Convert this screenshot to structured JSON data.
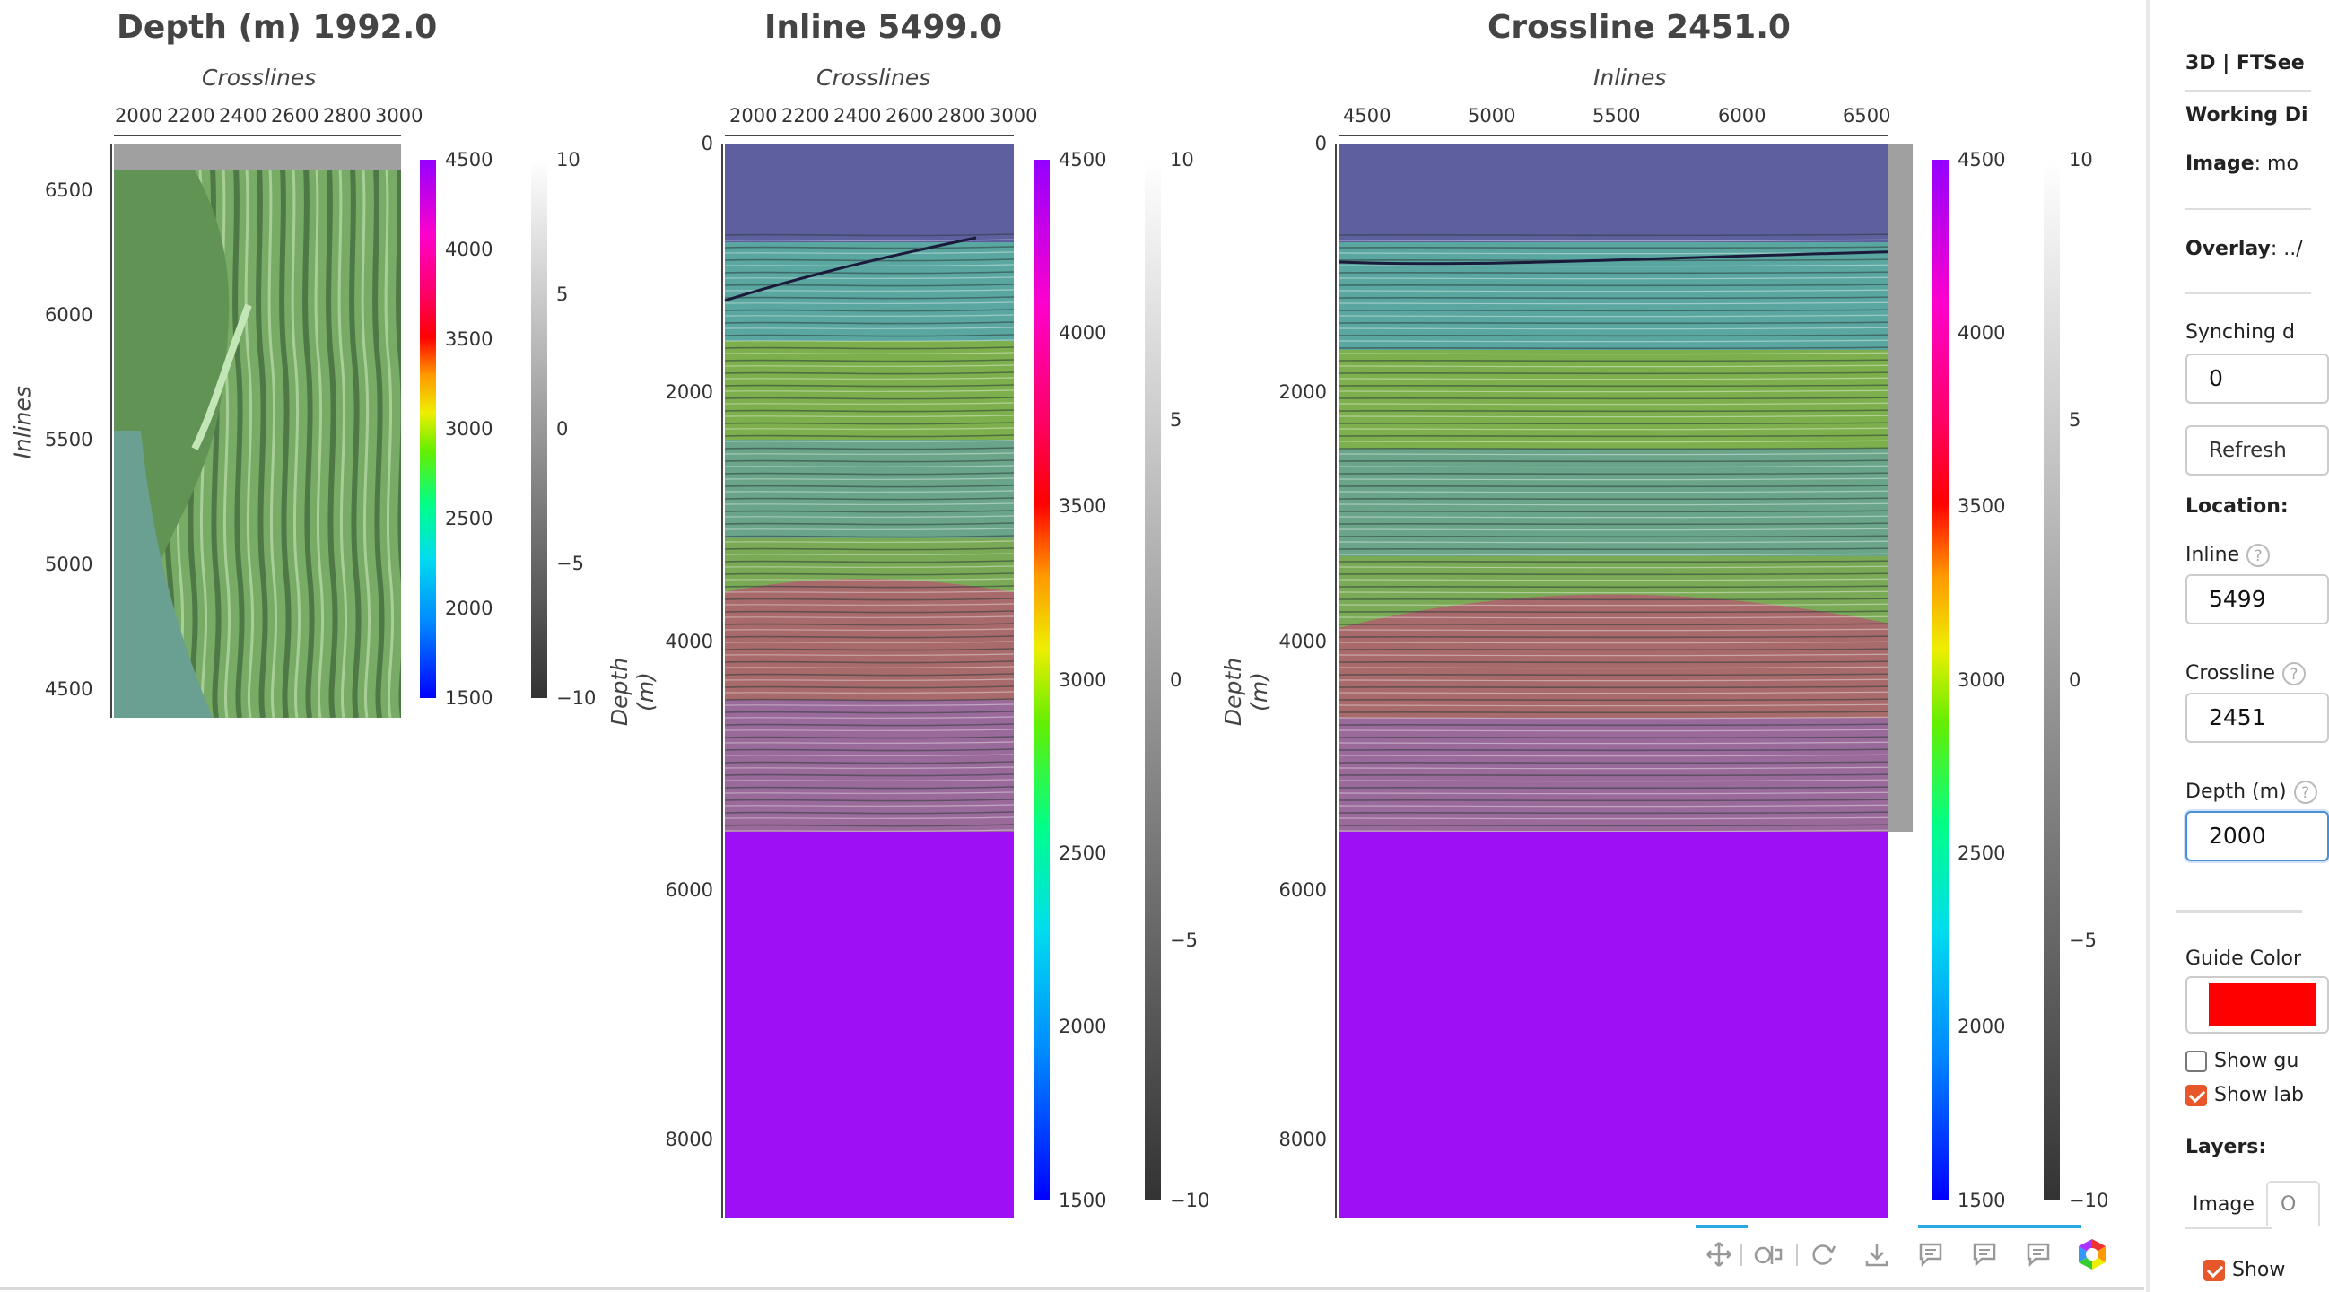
{
  "plots": {
    "depth_slice": {
      "title": "Depth (m) 1992.0",
      "xlabel": "Crosslines",
      "ylabel": "Inlines",
      "x_ticks": [
        "2000",
        "2200",
        "2400",
        "2600",
        "2800",
        "3000"
      ],
      "y_ticks": [
        "6500",
        "6000",
        "5500",
        "5000",
        "4500"
      ]
    },
    "inline": {
      "title": "Inline 5499.0",
      "xlabel": "Crosslines",
      "ylabel": "Depth (m)",
      "x_ticks": [
        "2000",
        "2200",
        "2400",
        "2600",
        "2800",
        "3000"
      ],
      "y_ticks": [
        "0",
        "2000",
        "4000",
        "6000",
        "8000"
      ]
    },
    "crossline": {
      "title": "Crossline 2451.0",
      "xlabel": "Inlines",
      "ylabel": "Depth (m)",
      "x_ticks": [
        "4500",
        "5000",
        "5500",
        "6000",
        "6500"
      ],
      "y_ticks": [
        "0",
        "2000",
        "4000",
        "6000",
        "8000"
      ]
    },
    "velocity_colorbar_ticks": [
      "4500",
      "4000",
      "3500",
      "3000",
      "2500",
      "2000",
      "1500"
    ],
    "seismic_colorbar_ticks": [
      "10",
      "5",
      "0",
      "−5",
      "−10"
    ],
    "colors": {
      "water": "#5e5f9e",
      "overlay_low": "#5aa6a0",
      "overlay_mid": "#7db04c",
      "overlay_high": "#a15a82",
      "overlay_max": "#9e0ff5",
      "sidebar_border": "#e8e8e8",
      "accent": "#e8572a",
      "active_tool": "#26aae1",
      "guide_color": "#ff0000"
    }
  },
  "toolbar": {
    "icons": [
      "pan-icon",
      "wheel-zoom-icon",
      "reset-icon",
      "save-icon",
      "hover-icon",
      "hover-icon",
      "hover-icon",
      "bokeh-logo-icon"
    ]
  },
  "sidebar": {
    "title": "3D | FTSee",
    "working_dir_label": "Working Di",
    "image_label": "Image",
    "image_value": ": mo",
    "overlay_label": "Overlay",
    "overlay_value": ": ../",
    "synching_label": "Synching d",
    "synching_value": "0",
    "refresh_label": "Refresh",
    "location_label": "Location:",
    "inline_label": "Inline",
    "inline_value": "5499",
    "crossline_label": "Crossline",
    "crossline_value": "2451",
    "depth_label": "Depth (m)",
    "depth_value": "2000",
    "guide_color_label": "Guide Color",
    "show_guides_label": "Show gu",
    "show_guides_checked": false,
    "show_labels_label": "Show lab",
    "show_labels_checked": true,
    "layers_label": "Layers:",
    "tab_image": "Image",
    "tab_other": "O",
    "show_label": "Show",
    "show_checked": true
  }
}
